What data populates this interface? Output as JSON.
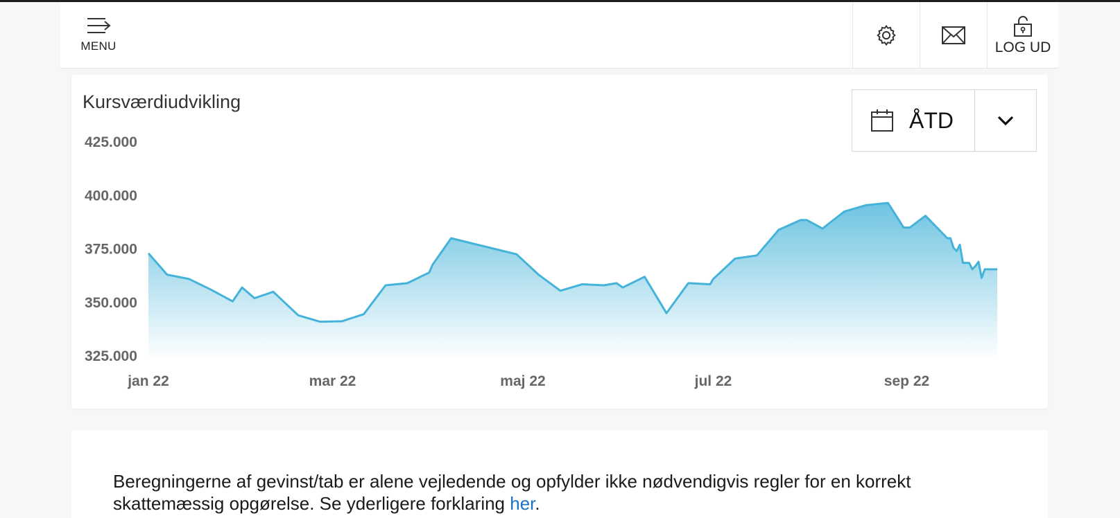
{
  "header": {
    "menu_label": "MENU",
    "logout_label": "LOG UD"
  },
  "chart_card": {
    "title": "Kursværdiudvikling",
    "range": {
      "selected": "ÅTD"
    }
  },
  "chart_data": {
    "type": "area",
    "title": "Kursværdiudvikling",
    "xlabel": "",
    "ylabel": "",
    "ylim": [
      325000,
      425000
    ],
    "yticks": [
      "425.000",
      "400.000",
      "375.000",
      "350.000",
      "325.000"
    ],
    "ytick_values": [
      425000,
      400000,
      375000,
      350000,
      325000
    ],
    "xticks": [
      "jan 22",
      "mar 22",
      "maj 22",
      "jul 22",
      "sep 22"
    ],
    "xtick_dates": [
      "2022-01-01",
      "2022-03-01",
      "2022-05-01",
      "2022-07-01",
      "2022-09-01"
    ],
    "x_start": "2022-01-01",
    "x_end": "2022-09-30",
    "grid": false,
    "legend": "none",
    "color": "#45b3d9",
    "points": [
      [
        "2022-01-01",
        373000
      ],
      [
        "2022-01-07",
        363000
      ],
      [
        "2022-01-14",
        361000
      ],
      [
        "2022-01-21",
        356000
      ],
      [
        "2022-01-28",
        350500
      ],
      [
        "2022-01-31",
        357000
      ],
      [
        "2022-02-04",
        352000
      ],
      [
        "2022-02-10",
        355000
      ],
      [
        "2022-02-18",
        344000
      ],
      [
        "2022-02-25",
        341000
      ],
      [
        "2022-03-04",
        341200
      ],
      [
        "2022-03-11",
        344500
      ],
      [
        "2022-03-18",
        358000
      ],
      [
        "2022-03-25",
        359000
      ],
      [
        "2022-04-01",
        364000
      ],
      [
        "2022-04-02",
        367500
      ],
      [
        "2022-04-08",
        380000
      ],
      [
        "2022-04-22",
        375000
      ],
      [
        "2022-04-29",
        372500
      ],
      [
        "2022-05-06",
        363000
      ],
      [
        "2022-05-13",
        355500
      ],
      [
        "2022-05-20",
        358500
      ],
      [
        "2022-05-27",
        358000
      ],
      [
        "2022-05-31",
        359000
      ],
      [
        "2022-06-02",
        357000
      ],
      [
        "2022-06-09",
        362000
      ],
      [
        "2022-06-16",
        345000
      ],
      [
        "2022-06-23",
        359000
      ],
      [
        "2022-06-30",
        358500
      ],
      [
        "2022-07-01",
        361000
      ],
      [
        "2022-07-08",
        370500
      ],
      [
        "2022-07-15",
        372000
      ],
      [
        "2022-07-22",
        384000
      ],
      [
        "2022-07-29",
        388500
      ],
      [
        "2022-07-31",
        388500
      ],
      [
        "2022-08-05",
        384500
      ],
      [
        "2022-08-12",
        392500
      ],
      [
        "2022-08-19",
        395500
      ],
      [
        "2022-08-26",
        396500
      ],
      [
        "2022-08-31",
        385000
      ],
      [
        "2022-09-02",
        385000
      ],
      [
        "2022-09-07",
        390500
      ],
      [
        "2022-09-14",
        380000
      ],
      [
        "2022-09-15",
        380000
      ],
      [
        "2022-09-16",
        375500
      ],
      [
        "2022-09-17",
        374000
      ],
      [
        "2022-09-18",
        377000
      ],
      [
        "2022-09-19",
        368500
      ],
      [
        "2022-09-21",
        368500
      ],
      [
        "2022-09-22",
        365500
      ],
      [
        "2022-09-23",
        367000
      ],
      [
        "2022-09-24",
        369000
      ],
      [
        "2022-09-25",
        361500
      ],
      [
        "2022-09-26",
        365500
      ],
      [
        "2022-09-30",
        365500
      ]
    ]
  },
  "info": {
    "text": "Beregningerne af gevinst/tab er alene vejledende og opfylder ikke nødvendigvis regler for en korrekt skattemæssig opgørelse. Se yderligere forklaring ",
    "link_text": "her",
    "suffix": "."
  }
}
